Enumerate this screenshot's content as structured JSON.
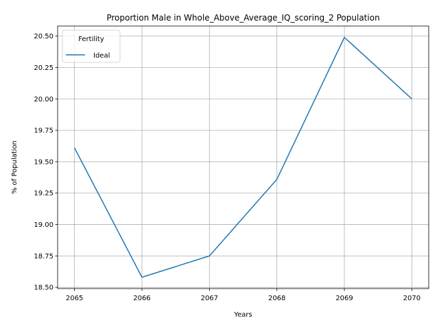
{
  "chart_data": {
    "type": "line",
    "title": "Proportion Male in Whole_Above_Average_IQ_scoring_2 Population",
    "xlabel": "Years",
    "ylabel": "% of Population",
    "x": [
      2065,
      2066,
      2067,
      2068,
      2069,
      2070
    ],
    "x_tick_labels": [
      "2065",
      "2066",
      "2067",
      "2068",
      "2069",
      "2070"
    ],
    "xlim": [
      2064.75,
      2070.25
    ],
    "ylim": [
      18.49,
      20.58
    ],
    "y_ticks": [
      18.5,
      18.75,
      19.0,
      19.25,
      19.5,
      19.75,
      20.0,
      20.25,
      20.5
    ],
    "y_tick_labels": [
      "18.50",
      "18.75",
      "19.00",
      "19.25",
      "19.50",
      "19.75",
      "20.00",
      "20.25",
      "20.50"
    ],
    "grid": true,
    "legend": {
      "title": "Fertility",
      "placement": "top-left"
    },
    "series": [
      {
        "name": "Ideal",
        "color": "#1f77b4",
        "values": [
          19.61,
          18.58,
          18.75,
          19.36,
          20.49,
          20.0
        ]
      }
    ]
  }
}
